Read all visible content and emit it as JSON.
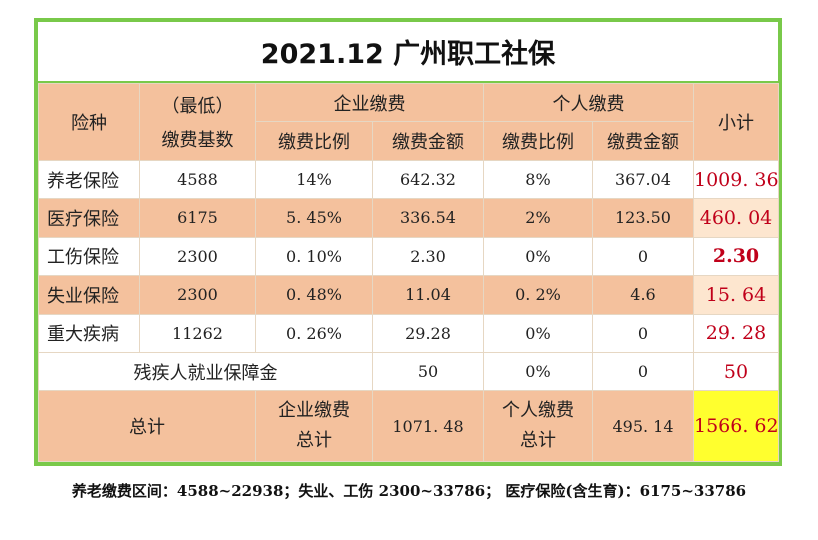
{
  "title": "2021.12 广州职工社保",
  "header": {
    "type": "险种",
    "base_line1": "（最低）",
    "base_line2": "缴费基数",
    "enterprise": "企业缴费",
    "personal": "个人缴费",
    "rate": "缴费比例",
    "amount": "缴费金额",
    "rate2": "缴费比例",
    "amount2": "缴费金额",
    "subtotal": "小计"
  },
  "rows": [
    {
      "name": "养老保险",
      "base": "4588",
      "e_rate": "14%",
      "e_amount": "642.32",
      "p_rate": "8%",
      "p_amount": "367.04",
      "subtotal": "1009. 36"
    },
    {
      "name": "医疗保险",
      "base": "6175",
      "e_rate": "5. 45%",
      "e_amount": "336.54",
      "p_rate": "2%",
      "p_amount": "123.50",
      "subtotal": "460. 04"
    },
    {
      "name": "工伤保险",
      "base": "2300",
      "e_rate": "0. 10%",
      "e_amount": "2.30",
      "p_rate": "0%",
      "p_amount": "0",
      "subtotal": "2.30"
    },
    {
      "name": "失业保险",
      "base": "2300",
      "e_rate": "0. 48%",
      "e_amount": "11.04",
      "p_rate": "0. 2%",
      "p_amount": "4.6",
      "subtotal": "15. 64"
    },
    {
      "name": "重大疾病",
      "base": "11262",
      "e_rate": "0. 26%",
      "e_amount": "29.28",
      "p_rate": "0%",
      "p_amount": "0",
      "subtotal": "29. 28"
    }
  ],
  "disability": {
    "name": "残疾人就业保障金",
    "e_amount": "50",
    "p_rate": "0%",
    "p_amount": "0",
    "subtotal": "50"
  },
  "total": {
    "label": "总计",
    "enterprise_line1": "企业缴费",
    "enterprise_line2": "总计",
    "enterprise_value": "1071. 48",
    "personal_line1": "个人缴费",
    "personal_line2": "总计",
    "personal_value": "495. 14",
    "grand": "1566. 62"
  },
  "footer": "养老缴费区间：4588~22938；失业、工伤 2300~33786；  医疗保险(含生育)：6175~33786"
}
